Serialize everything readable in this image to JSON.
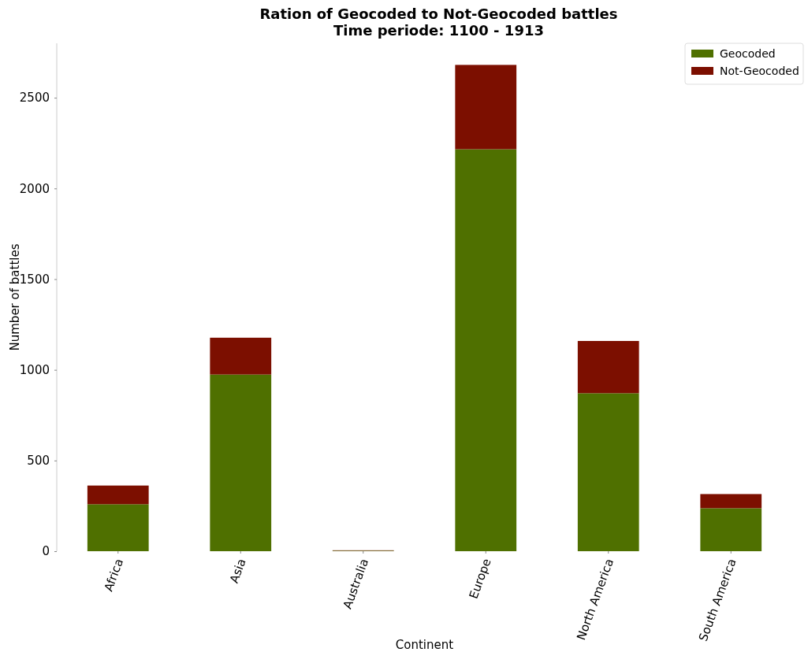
{
  "chart_data": {
    "type": "bar",
    "title": "Ration of Geocoded to Not-Geocoded battles",
    "subtitle": "Time periode: 1100 - 1913",
    "xlabel": "Continent",
    "ylabel": "Number of battles",
    "categories": [
      "Africa",
      "Asia",
      "Australia",
      "Europe",
      "North America",
      "South America"
    ],
    "stacked": true,
    "legend": "top right",
    "ylim": [
      0,
      2800
    ],
    "yticks": [
      0,
      500,
      1000,
      1500,
      2000,
      2500
    ],
    "series": [
      {
        "name": "Geocoded",
        "color": "#4f7000",
        "values": [
          259,
          974,
          3,
          2216,
          871,
          237
        ]
      },
      {
        "name": "Not-Geocoded",
        "color": "#7c0f00",
        "values": [
          103,
          203,
          2,
          465,
          288,
          78
        ]
      }
    ]
  }
}
